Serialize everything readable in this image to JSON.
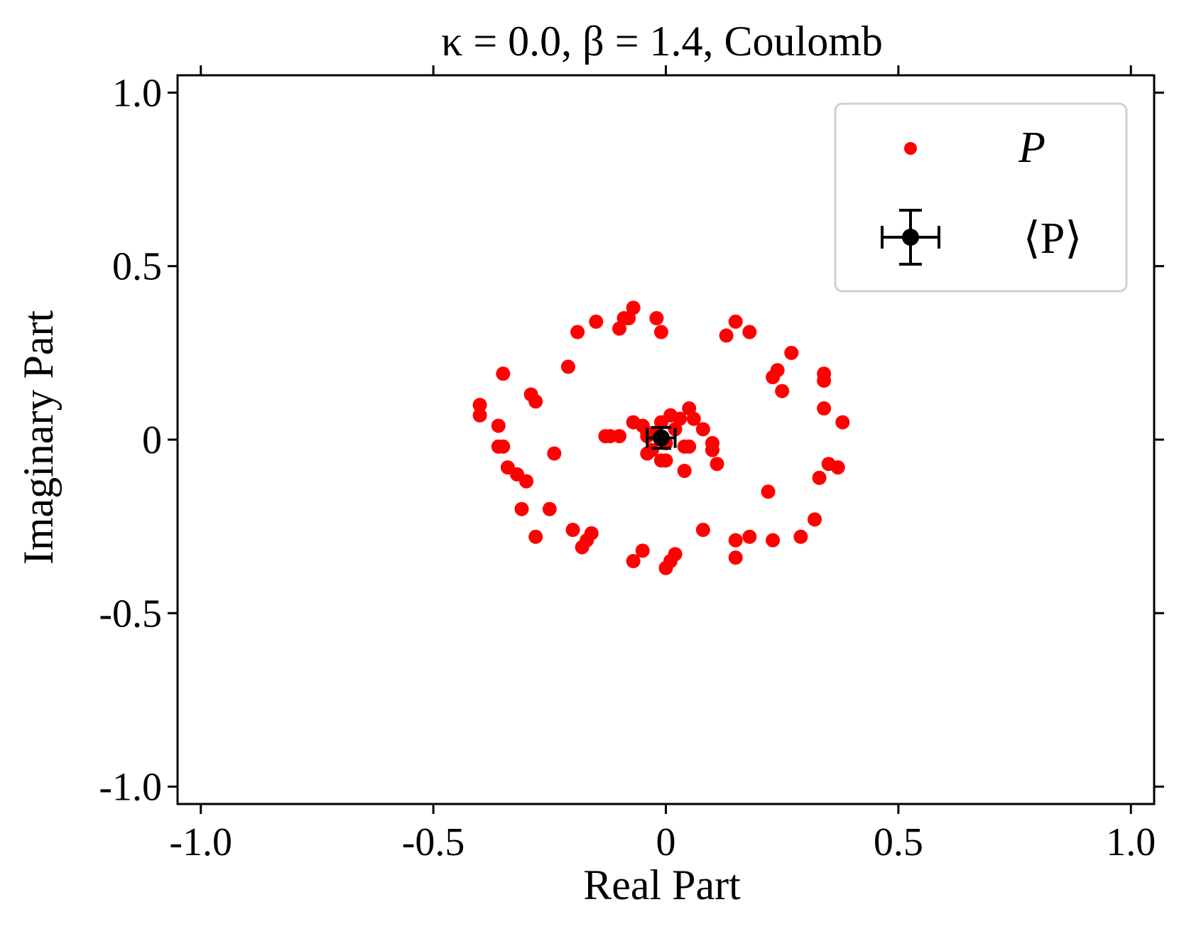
{
  "chart_data": {
    "type": "scatter",
    "title": "κ = 0.0, β = 1.4, Coulomb",
    "xlabel": "Real Part",
    "ylabel": "Imaginary Part",
    "xlim": [
      -1.05,
      1.05
    ],
    "ylim": [
      -1.05,
      1.05
    ],
    "xticks": [
      -1.0,
      -0.5,
      0,
      0.5,
      1.0
    ],
    "xtick_labels": [
      "-1.0",
      "-0.5",
      "0",
      "0.5",
      "1.0"
    ],
    "yticks": [
      -1.0,
      -0.5,
      0,
      0.5,
      1.0
    ],
    "ytick_labels": [
      "-1.0",
      "-0.5",
      "0",
      "0.5",
      "1.0"
    ],
    "grid": false,
    "legend_position": "top-right",
    "series": [
      {
        "name": "P",
        "color": "#ff0000",
        "marker": "circle",
        "x": [
          -0.4,
          -0.4,
          -0.36,
          -0.35,
          -0.36,
          -0.34,
          -0.32,
          -0.3,
          -0.31,
          -0.29,
          -0.28,
          -0.28,
          -0.25,
          -0.24,
          -0.21,
          -0.2,
          -0.18,
          -0.17,
          -0.16,
          -0.15,
          -0.19,
          -0.35,
          -0.12,
          -0.1,
          -0.09,
          -0.07,
          -0.08,
          -0.07,
          -0.05,
          -0.05,
          -0.02,
          -0.01,
          -0.01,
          0.0,
          0.01,
          0.02,
          -0.13,
          -0.1,
          -0.07,
          -0.04,
          -0.03,
          -0.01,
          0.0,
          0.01,
          0.02,
          0.03,
          0.05,
          0.06,
          0.08,
          0.1,
          0.11,
          0.04,
          0.05,
          0.1,
          0.13,
          0.15,
          0.18,
          0.23,
          0.24,
          0.25,
          0.27,
          0.34,
          0.34,
          0.34,
          0.38,
          0.33,
          0.35,
          0.37,
          0.32,
          0.29,
          0.23,
          0.22,
          0.18,
          0.15,
          0.15,
          0.08,
          0.04,
          0.0,
          -0.04,
          -0.04,
          -0.01,
          -0.02
        ],
        "y": [
          0.1,
          0.07,
          0.04,
          -0.02,
          -0.02,
          -0.08,
          -0.1,
          -0.12,
          -0.2,
          0.13,
          0.11,
          -0.28,
          -0.2,
          -0.04,
          0.21,
          -0.26,
          -0.31,
          -0.29,
          -0.27,
          0.34,
          0.31,
          0.19,
          0.01,
          0.32,
          0.35,
          0.38,
          0.35,
          -0.35,
          -0.32,
          0.04,
          0.35,
          0.31,
          0.05,
          -0.37,
          -0.35,
          -0.33,
          0.01,
          0.01,
          0.05,
          0.01,
          -0.03,
          0.0,
          -0.01,
          0.07,
          0.03,
          0.06,
          0.09,
          0.06,
          0.03,
          -0.01,
          -0.07,
          -0.09,
          -0.02,
          -0.03,
          0.3,
          0.34,
          0.31,
          0.18,
          0.2,
          0.14,
          0.25,
          0.19,
          0.17,
          0.09,
          0.05,
          -0.11,
          -0.07,
          -0.08,
          -0.23,
          -0.28,
          -0.29,
          -0.15,
          -0.28,
          -0.29,
          -0.34,
          -0.26,
          -0.02,
          -0.06,
          -0.04,
          0.02,
          -0.06,
          0.02
        ]
      },
      {
        "name": "⟨P⟩",
        "color": "#000000",
        "marker": "circle-errorbar",
        "x": [
          -0.01
        ],
        "y": [
          0.005
        ],
        "xerr": [
          0.03
        ],
        "yerr": [
          0.03
        ]
      }
    ]
  }
}
